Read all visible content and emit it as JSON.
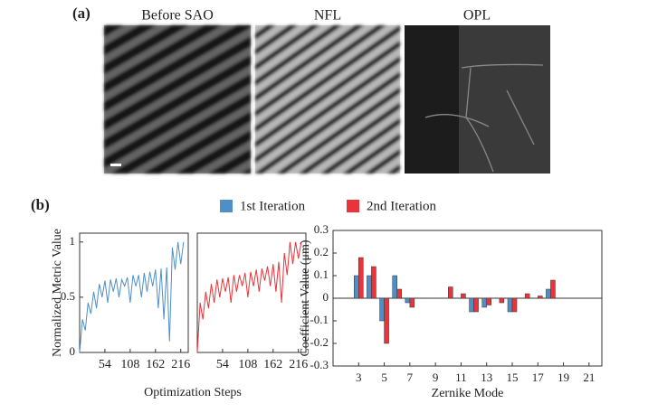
{
  "panels": {
    "a": "(a)",
    "b": "(b)"
  },
  "images": [
    "Before SAO",
    "NFL",
    "OPL"
  ],
  "chart_data": [
    {
      "type": "line",
      "ylabel": "Normalized Metric Value",
      "xlabel": "Optimization Steps",
      "color": "#4f8fc8",
      "x": [
        0,
        6,
        12,
        18,
        24,
        30,
        36,
        42,
        48,
        54,
        60,
        66,
        72,
        78,
        84,
        90,
        96,
        102,
        108,
        114,
        120,
        126,
        132,
        138,
        144,
        150,
        156,
        162,
        168,
        174,
        180,
        186,
        192,
        198,
        204,
        210,
        216,
        222
      ],
      "values": [
        0,
        0.3,
        0.2,
        0.45,
        0.35,
        0.55,
        0.4,
        0.62,
        0.5,
        0.65,
        0.45,
        0.66,
        0.55,
        0.67,
        0.5,
        0.66,
        0.6,
        0.68,
        0.45,
        0.7,
        0.6,
        0.7,
        0.5,
        0.72,
        0.55,
        0.73,
        0.6,
        0.75,
        0.4,
        0.76,
        0.3,
        0.77,
        0.1,
        0.95,
        0.75,
        1.0,
        0.8,
        1.0
      ],
      "xlim": [
        0,
        232
      ],
      "xticks": [
        54,
        108,
        162,
        216
      ],
      "ylim": [
        0,
        1.08
      ],
      "yticks": [
        0,
        0.5,
        1
      ]
    },
    {
      "type": "line",
      "color": "#e8343a",
      "x": [
        0,
        6,
        12,
        18,
        24,
        30,
        36,
        42,
        48,
        54,
        60,
        66,
        72,
        78,
        84,
        90,
        96,
        102,
        108,
        114,
        120,
        126,
        132,
        138,
        144,
        150,
        156,
        162,
        168,
        174,
        180,
        186,
        192,
        198,
        204,
        210,
        216,
        222
      ],
      "values": [
        0,
        0.45,
        0.3,
        0.55,
        0.4,
        0.62,
        0.45,
        0.66,
        0.5,
        0.67,
        0.55,
        0.68,
        0.45,
        0.7,
        0.55,
        0.7,
        0.6,
        0.72,
        0.5,
        0.73,
        0.6,
        0.75,
        0.55,
        0.76,
        0.65,
        0.78,
        0.6,
        0.8,
        0.55,
        0.82,
        0.45,
        0.9,
        0.7,
        1.0,
        0.8,
        1.0,
        0.85,
        1.0
      ],
      "xlim": [
        0,
        232
      ],
      "xticks": [
        54,
        108,
        162,
        216
      ],
      "ylim": [
        0,
        1.08
      ]
    },
    {
      "type": "bar",
      "ylabel": "Coefficient Value (μm)",
      "xlabel": "Zernike Mode",
      "x": [
        3,
        4,
        5,
        6,
        7,
        8,
        9,
        10,
        11,
        12,
        13,
        14,
        15,
        16,
        17,
        18
      ],
      "series": [
        {
          "name": "1st Iteration",
          "color": "#4f8fc8",
          "values": [
            0.1,
            0.1,
            -0.1,
            0.1,
            -0.02,
            0,
            0,
            0,
            0,
            -0.06,
            -0.04,
            0,
            -0.06,
            0,
            0,
            0.04
          ]
        },
        {
          "name": "2nd Iteration",
          "color": "#e8343a",
          "values": [
            0.18,
            0.14,
            -0.2,
            0.04,
            -0.04,
            0,
            0,
            0.05,
            0.02,
            -0.06,
            -0.03,
            -0.02,
            -0.06,
            0.02,
            0.01,
            0.08
          ]
        }
      ],
      "xlim": [
        1,
        22
      ],
      "xticks": [
        3,
        5,
        7,
        9,
        11,
        13,
        15,
        17,
        19,
        21
      ],
      "ylim": [
        -0.3,
        0.3
      ],
      "yticks": [
        -0.3,
        -0.2,
        -0.1,
        0,
        0.1,
        0.2,
        0.3
      ]
    }
  ]
}
